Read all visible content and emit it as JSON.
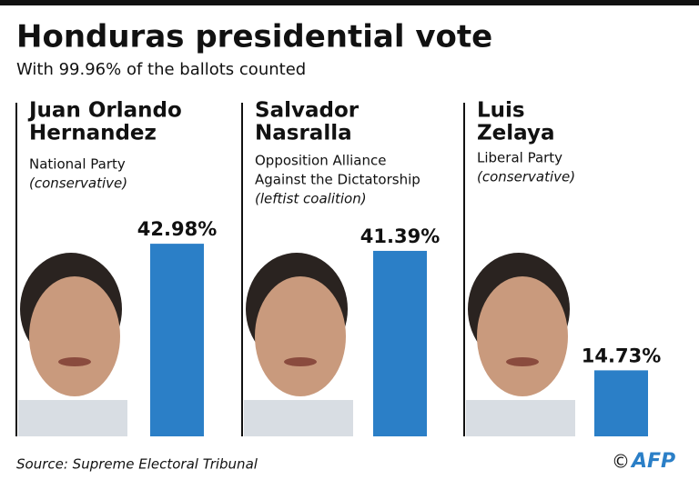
{
  "chart_data": {
    "type": "bar",
    "title": "Honduras presidential vote",
    "subtitle": "With 99.96% of the ballots counted",
    "candidates": [
      {
        "name": [
          "Juan Orlando",
          "Hernandez"
        ],
        "party": [
          "National Party"
        ],
        "note": "(conservative)"
      },
      {
        "name": [
          "Salvador",
          "Nasralla"
        ],
        "party": [
          "Opposition Alliance",
          "Against the Dictatorship"
        ],
        "note": "(leftist coalition)"
      },
      {
        "name": [
          "Luis",
          "Zelaya"
        ],
        "party": [
          "Liberal Party"
        ],
        "note": "(conservative)"
      }
    ],
    "values": [
      42.98,
      41.39,
      14.73
    ],
    "value_labels": [
      "42.98%",
      "41.39%",
      "14.73%"
    ],
    "color": "#2b7fc7",
    "source": "Source: Supreme Electoral Tribunal",
    "credit": "AFP"
  }
}
